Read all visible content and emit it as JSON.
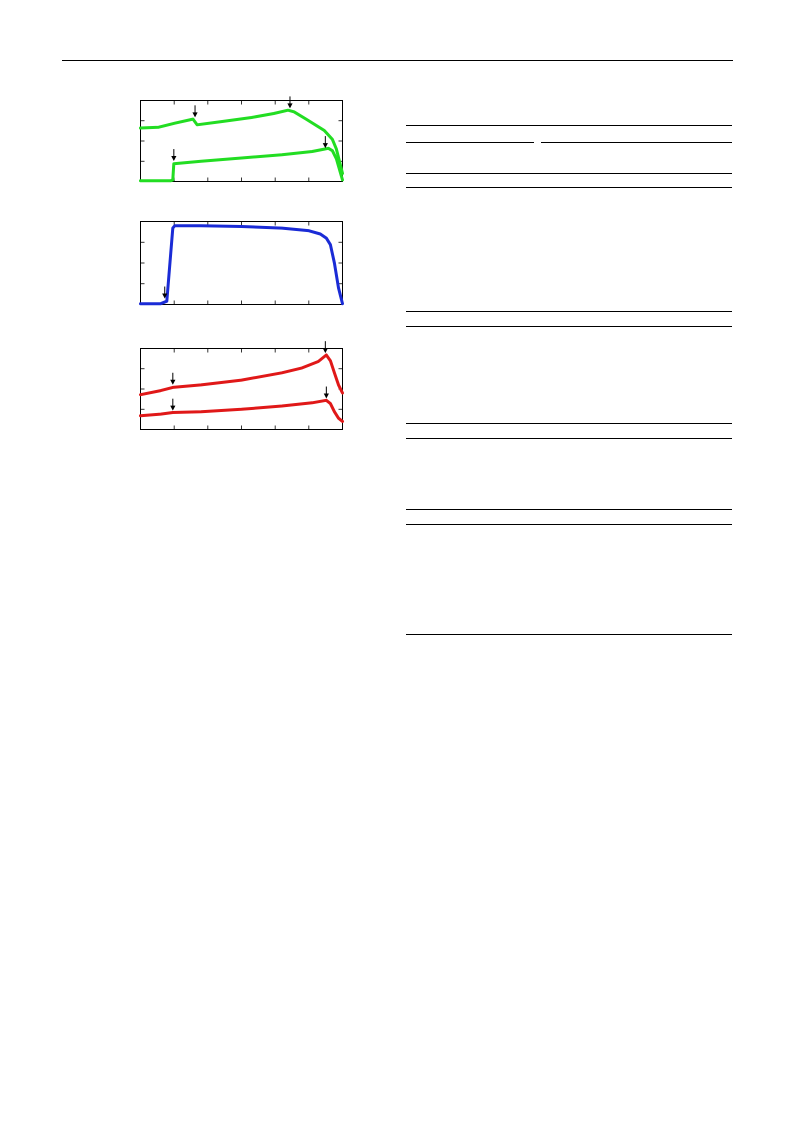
{
  "chart_data": [
    {
      "type": "line",
      "series": [
        {
          "color": "#22dd22",
          "points": [
            [
              0,
              0.66
            ],
            [
              0.09,
              0.67
            ],
            [
              0.17,
              0.72
            ],
            [
              0.26,
              0.77
            ],
            [
              0.28,
              0.7
            ],
            [
              0.4,
              0.74
            ],
            [
              0.55,
              0.79
            ],
            [
              0.66,
              0.84
            ],
            [
              0.73,
              0.88
            ],
            [
              0.76,
              0.86
            ],
            [
              0.82,
              0.77
            ],
            [
              0.91,
              0.63
            ],
            [
              0.95,
              0.52
            ],
            [
              0.97,
              0.4
            ],
            [
              1.0,
              0.1
            ]
          ]
        },
        {
          "color": "#22dd22",
          "points": [
            [
              0,
              0.01
            ],
            [
              0.15,
              0.01
            ],
            [
              0.16,
              0.02
            ],
            [
              0.165,
              0.22
            ],
            [
              0.3,
              0.25
            ],
            [
              0.5,
              0.29
            ],
            [
              0.7,
              0.33
            ],
            [
              0.85,
              0.37
            ],
            [
              0.91,
              0.4
            ],
            [
              0.93,
              0.41
            ],
            [
              0.95,
              0.38
            ],
            [
              0.97,
              0.28
            ],
            [
              1.0,
              0.02
            ]
          ]
        }
      ],
      "arrows": [
        [
          0.165,
          0.24
        ],
        [
          0.27,
          0.78
        ],
        [
          0.74,
          0.89
        ],
        [
          0.915,
          0.4
        ]
      ],
      "color": "#22dd22",
      "xlim": [
        0,
        1
      ],
      "ylim": [
        0,
        1
      ]
    },
    {
      "type": "line",
      "series": [
        {
          "color": "#1a2bd6",
          "points": [
            [
              0,
              0.01
            ],
            [
              0.1,
              0.01
            ],
            [
              0.13,
              0.04
            ],
            [
              0.16,
              0.92
            ],
            [
              0.17,
              0.95
            ],
            [
              0.3,
              0.95
            ],
            [
              0.5,
              0.94
            ],
            [
              0.7,
              0.92
            ],
            [
              0.83,
              0.89
            ],
            [
              0.89,
              0.85
            ],
            [
              0.92,
              0.8
            ],
            [
              0.94,
              0.72
            ],
            [
              0.96,
              0.5
            ],
            [
              0.98,
              0.2
            ],
            [
              1.0,
              0.01
            ]
          ]
        }
      ],
      "arrows": [
        [
          0.12,
          0.06
        ]
      ],
      "color": "#1a2bd6",
      "xlim": [
        0,
        1
      ],
      "ylim": [
        0,
        1
      ]
    },
    {
      "type": "line",
      "series": [
        {
          "color": "#e01818",
          "points": [
            [
              0,
              0.43
            ],
            [
              0.1,
              0.48
            ],
            [
              0.16,
              0.52
            ],
            [
              0.3,
              0.55
            ],
            [
              0.5,
              0.61
            ],
            [
              0.7,
              0.7
            ],
            [
              0.8,
              0.76
            ],
            [
              0.88,
              0.84
            ],
            [
              0.92,
              0.92
            ],
            [
              0.94,
              0.85
            ],
            [
              0.96,
              0.7
            ],
            [
              0.98,
              0.55
            ],
            [
              1.0,
              0.45
            ]
          ]
        },
        {
          "color": "#e01818",
          "points": [
            [
              0,
              0.17
            ],
            [
              0.1,
              0.19
            ],
            [
              0.16,
              0.21
            ],
            [
              0.3,
              0.22
            ],
            [
              0.5,
              0.25
            ],
            [
              0.7,
              0.29
            ],
            [
              0.85,
              0.33
            ],
            [
              0.92,
              0.36
            ],
            [
              0.94,
              0.32
            ],
            [
              0.96,
              0.22
            ],
            [
              0.98,
              0.14
            ],
            [
              1.0,
              0.1
            ]
          ]
        }
      ],
      "arrows": [
        [
          0.16,
          0.54
        ],
        [
          0.16,
          0.22
        ],
        [
          0.915,
          0.93
        ],
        [
          0.92,
          0.37
        ]
      ],
      "color": "#e01818",
      "xlim": [
        0,
        1
      ],
      "ylim": [
        0,
        1
      ]
    }
  ]
}
